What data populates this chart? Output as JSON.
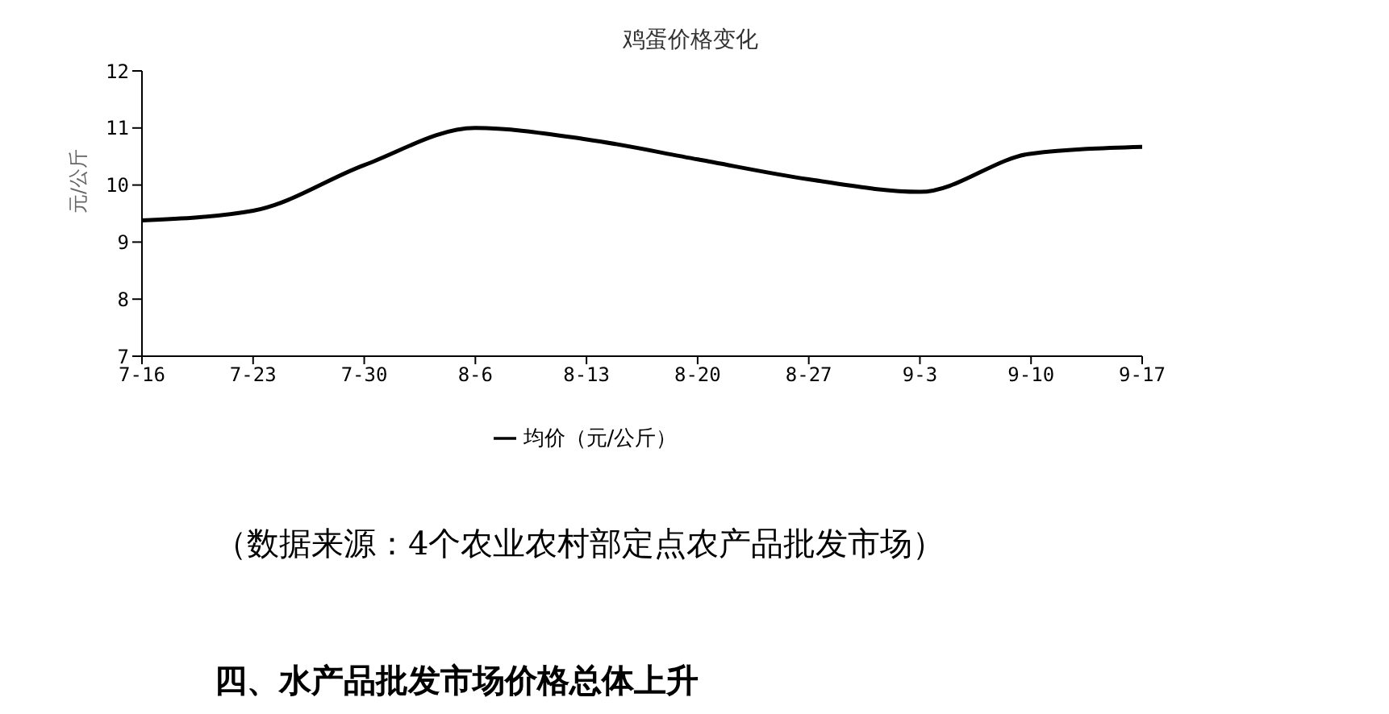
{
  "chart_data": {
    "type": "line",
    "title": "鸡蛋价格变化",
    "ylabel": "元/公斤",
    "categories": [
      "7-16",
      "7-23",
      "7-30",
      "8-6",
      "8-13",
      "8-20",
      "8-27",
      "9-3",
      "9-10",
      "9-17"
    ],
    "series": [
      {
        "name": "均价（元/公斤）",
        "color": "#000000",
        "values": [
          9.38,
          9.55,
          10.35,
          11.0,
          10.8,
          10.45,
          10.1,
          9.88,
          10.55,
          10.67
        ]
      }
    ],
    "ylim": [
      7,
      12
    ],
    "yticks": [
      7,
      8,
      9,
      10,
      11,
      12
    ],
    "grid": false,
    "legend": "bottom",
    "marker": "none",
    "line_style": "solid",
    "annotations": [
      "（数据来源：4个农业农村部定点农产品批发市场）",
      "四、水产品批发市场价格总体上升"
    ]
  }
}
